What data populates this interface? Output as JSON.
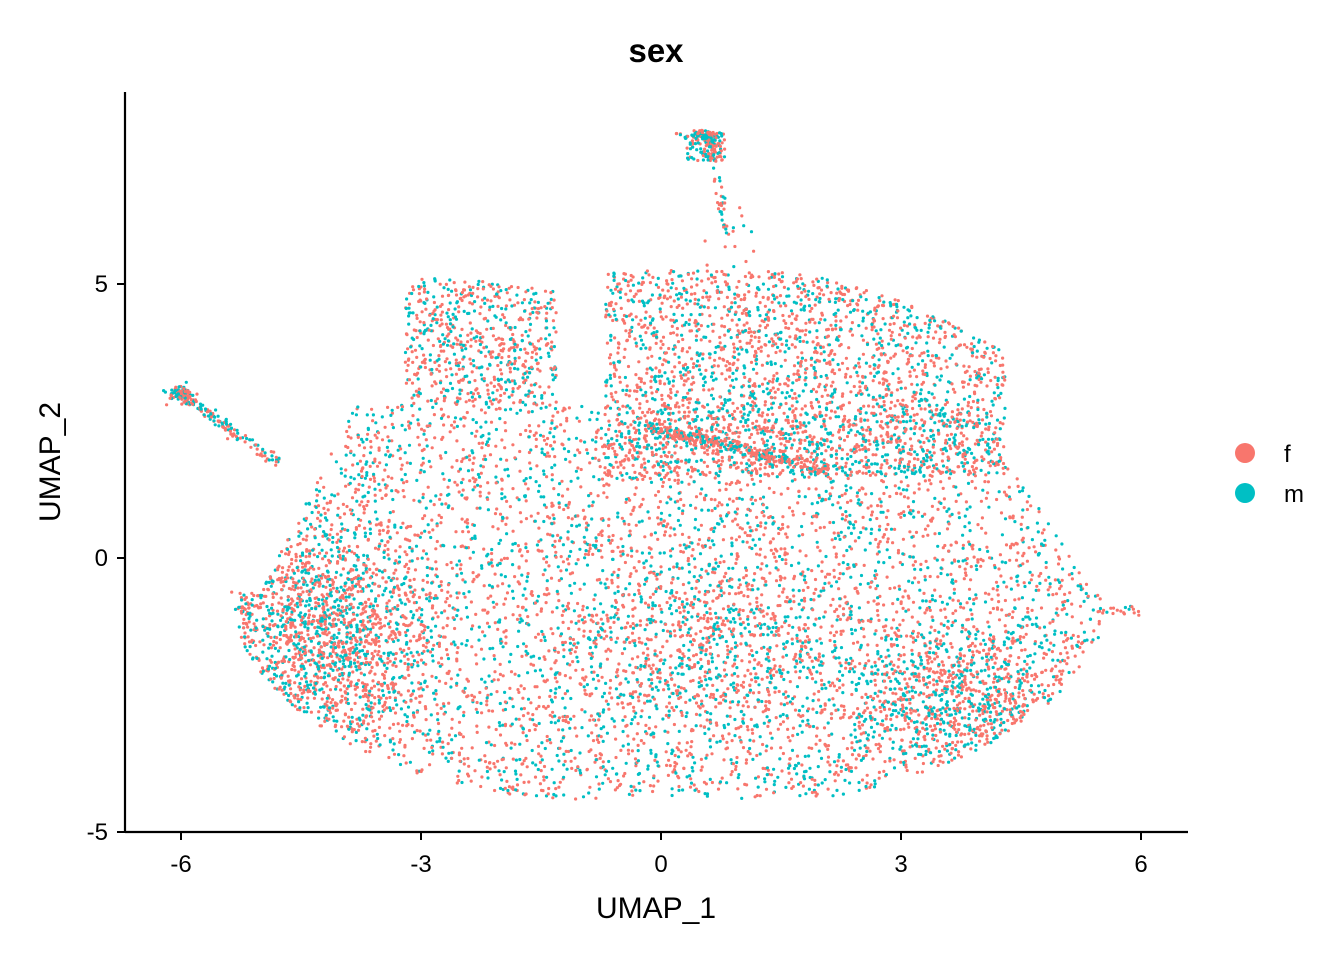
{
  "chart_data": {
    "type": "scatter",
    "title": "sex",
    "xlabel": "UMAP_1",
    "ylabel": "UMAP_2",
    "xlim": [
      -6.6,
      6.6
    ],
    "ylim": [
      -5.0,
      8.5
    ],
    "xticks": [
      -6,
      -3,
      0,
      3,
      6
    ],
    "xtick_labels": [
      "-6",
      "-3",
      "0",
      "3",
      "6"
    ],
    "yticks": [
      -5,
      0,
      5
    ],
    "ytick_labels": [
      "-5",
      "0",
      "5"
    ],
    "grid": false,
    "legend_position": "right",
    "series": [
      {
        "name": "f",
        "color": "#F8766D"
      },
      {
        "name": "m",
        "color": "#00BFC4"
      }
    ],
    "clusters": [
      {
        "region": "main-body",
        "x_range": [
          -5.3,
          5.6
        ],
        "y_range": [
          -4.4,
          2.8
        ],
        "share_f": 0.6,
        "share_m": 0.4
      },
      {
        "region": "upper-right-lobe",
        "x_range": [
          -0.7,
          4.3
        ],
        "y_range": [
          1.5,
          5.3
        ],
        "share_f": 0.62,
        "share_m": 0.38
      },
      {
        "region": "upper-left-lobe",
        "x_range": [
          -3.2,
          -1.3
        ],
        "y_range": [
          2.8,
          5.1
        ],
        "share_f": 0.6,
        "share_m": 0.4
      },
      {
        "region": "left-arm",
        "x_range": [
          -6.1,
          -4.7
        ],
        "y_range": [
          1.7,
          3.3
        ],
        "share_f": 0.55,
        "share_m": 0.45
      },
      {
        "region": "top-hook",
        "x_range": [
          -0.2,
          0.9
        ],
        "y_range": [
          5.8,
          7.8
        ],
        "share_f": 0.55,
        "share_m": 0.45
      },
      {
        "region": "right-tail",
        "x_range": [
          5.4,
          6.0
        ],
        "y_range": [
          -1.0,
          -0.8
        ],
        "share_f": 0.7,
        "share_m": 0.3
      }
    ]
  }
}
